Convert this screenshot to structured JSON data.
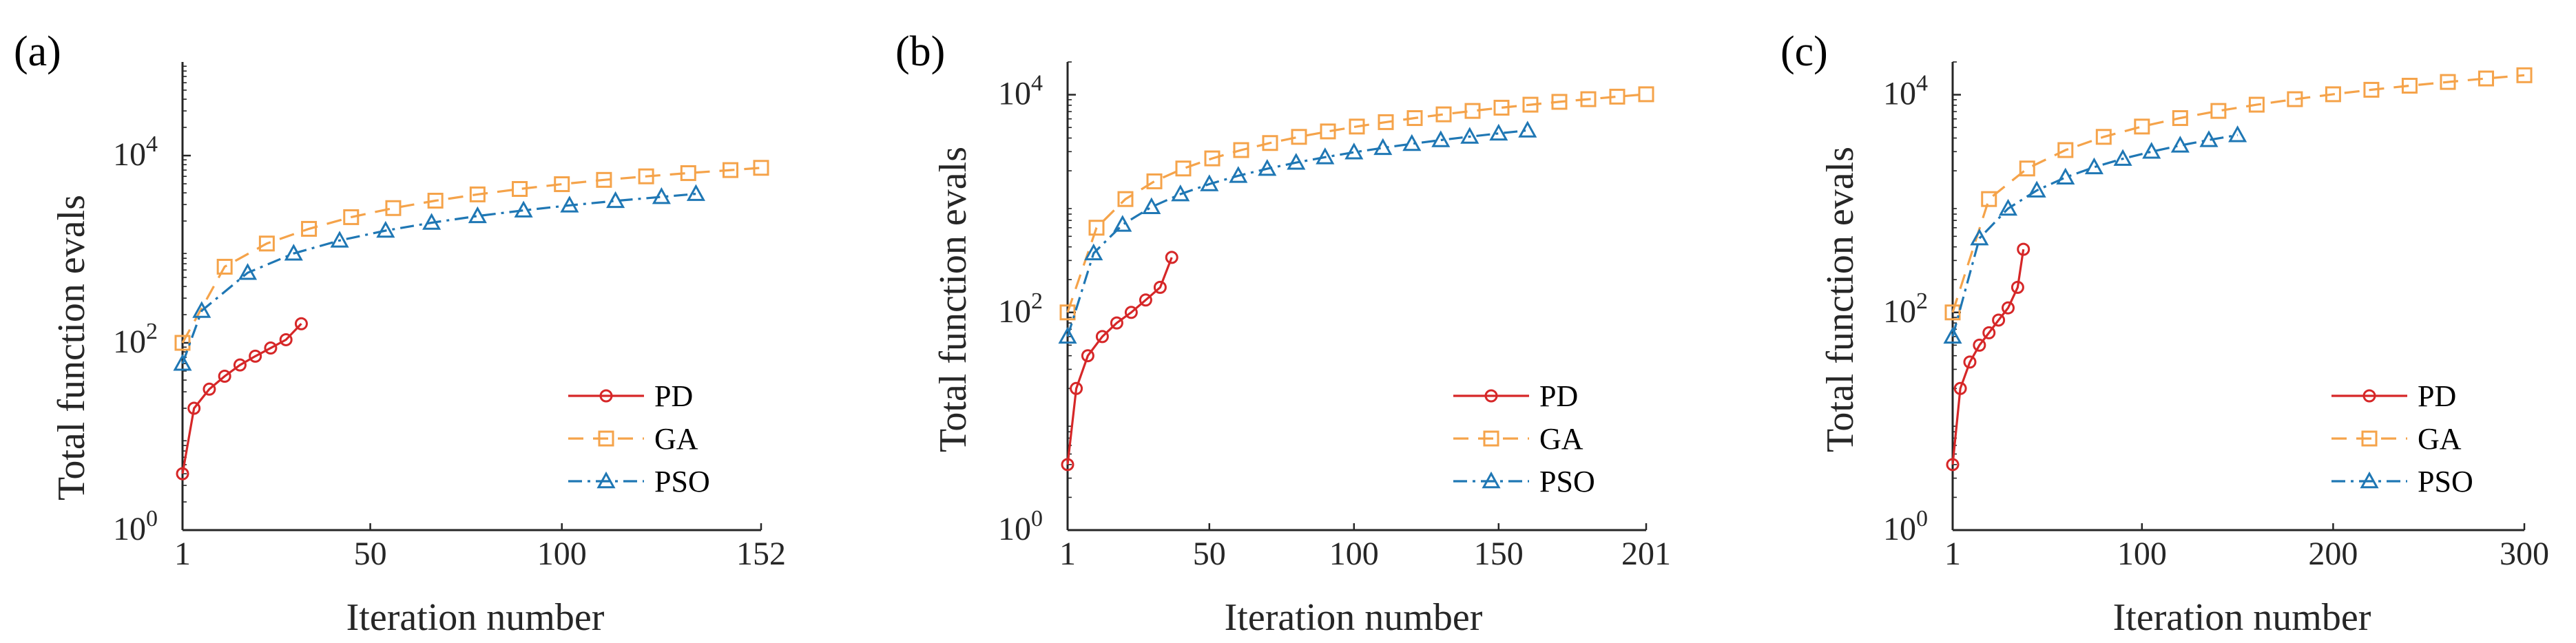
{
  "figure": {
    "ylabel": "Total function evals",
    "xlabel": "Iteration number"
  },
  "colors": {
    "PD": "#d62728",
    "GA": "#f5a34a",
    "PSO": "#1f77b4",
    "axis": "#262626"
  },
  "chart_data": [
    {
      "type": "line",
      "panel_label": "(a)",
      "xlabel": "Iteration number",
      "ylabel": "Total function evals",
      "yscale": "log",
      "xlim": [
        1,
        152
      ],
      "ylim": [
        1,
        100000
      ],
      "xticks": [
        1,
        50,
        100,
        152
      ],
      "xtick_labels": [
        "1",
        "50",
        "100",
        "152"
      ],
      "yticks": [
        1,
        100,
        10000
      ],
      "ytick_labels": [
        "10^0",
        "10^2",
        "10^4"
      ],
      "legend_position": "bottom-right",
      "series": [
        {
          "name": "PD",
          "x": [
            1,
            4,
            8,
            12,
            16,
            20,
            24,
            28,
            32
          ],
          "y": [
            4,
            20,
            32,
            44,
            58,
            72,
            88,
            108,
            160
          ]
        },
        {
          "name": "GA",
          "x": [
            1,
            12,
            23,
            34,
            45,
            56,
            67,
            78,
            89,
            100,
            111,
            122,
            133,
            144,
            152
          ],
          "y": [
            100,
            650,
            1150,
            1650,
            2200,
            2750,
            3300,
            3850,
            4400,
            4950,
            5500,
            6000,
            6500,
            7000,
            7400
          ]
        },
        {
          "name": "PSO",
          "x": [
            1,
            6,
            18,
            30,
            42,
            54,
            66,
            78,
            90,
            102,
            114,
            126,
            135
          ],
          "y": [
            60,
            220,
            560,
            900,
            1240,
            1580,
            1920,
            2260,
            2600,
            2940,
            3280,
            3620,
            3900
          ]
        }
      ]
    },
    {
      "type": "line",
      "panel_label": "(b)",
      "xlabel": "Iteration number",
      "ylabel": "Total function evals",
      "yscale": "log",
      "xlim": [
        1,
        201
      ],
      "ylim": [
        1,
        20000
      ],
      "xticks": [
        1,
        50,
        100,
        150,
        201
      ],
      "xtick_labels": [
        "1",
        "50",
        "100",
        "150",
        "201"
      ],
      "yticks": [
        1,
        100,
        10000
      ],
      "ytick_labels": [
        "10^0",
        "10^2",
        "10^4"
      ],
      "legend_position": "bottom-right",
      "series": [
        {
          "name": "PD",
          "x": [
            1,
            4,
            8,
            13,
            18,
            23,
            28,
            33,
            37
          ],
          "y": [
            4,
            20,
            40,
            60,
            80,
            100,
            130,
            170,
            320
          ]
        },
        {
          "name": "GA",
          "x": [
            1,
            11,
            21,
            31,
            41,
            51,
            61,
            71,
            81,
            91,
            101,
            111,
            121,
            131,
            141,
            151,
            161,
            171,
            181,
            191,
            201
          ],
          "y": [
            100,
            600,
            1100,
            1600,
            2100,
            2600,
            3100,
            3600,
            4100,
            4600,
            5100,
            5600,
            6100,
            6600,
            7100,
            7600,
            8100,
            8600,
            9100,
            9600,
            10100
          ]
        },
        {
          "name": "PSO",
          "x": [
            1,
            10,
            20,
            30,
            40,
            50,
            60,
            70,
            80,
            90,
            100,
            110,
            120,
            130,
            140,
            150,
            160
          ],
          "y": [
            60,
            350,
            640,
            930,
            1220,
            1510,
            1800,
            2090,
            2380,
            2670,
            2960,
            3250,
            3540,
            3830,
            4120,
            4410,
            4700
          ]
        }
      ]
    },
    {
      "type": "line",
      "panel_label": "(c)",
      "xlabel": "Iteration number",
      "ylabel": "Total function evals",
      "yscale": "log",
      "xlim": [
        1,
        300
      ],
      "ylim": [
        1,
        20000
      ],
      "xticks": [
        1,
        100,
        200,
        300
      ],
      "xtick_labels": [
        "1",
        "100",
        "200",
        "300"
      ],
      "yticks": [
        1,
        100,
        10000
      ],
      "ytick_labels": [
        "10^0",
        "10^2",
        "10^4"
      ],
      "legend_position": "bottom-right",
      "series": [
        {
          "name": "PD",
          "x": [
            1,
            5,
            10,
            15,
            20,
            25,
            30,
            35,
            38
          ],
          "y": [
            4,
            20,
            35,
            50,
            65,
            85,
            110,
            170,
            380
          ]
        },
        {
          "name": "GA",
          "x": [
            1,
            20,
            40,
            60,
            80,
            100,
            120,
            140,
            160,
            180,
            200,
            220,
            240,
            260,
            280,
            300
          ],
          "y": [
            100,
            1100,
            2100,
            3100,
            4100,
            5100,
            6100,
            7100,
            8100,
            9100,
            10100,
            11100,
            12100,
            13100,
            14100,
            15100
          ]
        },
        {
          "name": "PSO",
          "x": [
            1,
            15,
            30,
            45,
            60,
            75,
            90,
            105,
            120,
            135,
            150
          ],
          "y": [
            60,
            480,
            900,
            1320,
            1740,
            2160,
            2580,
            3000,
            3420,
            3840,
            4260
          ]
        }
      ]
    }
  ]
}
